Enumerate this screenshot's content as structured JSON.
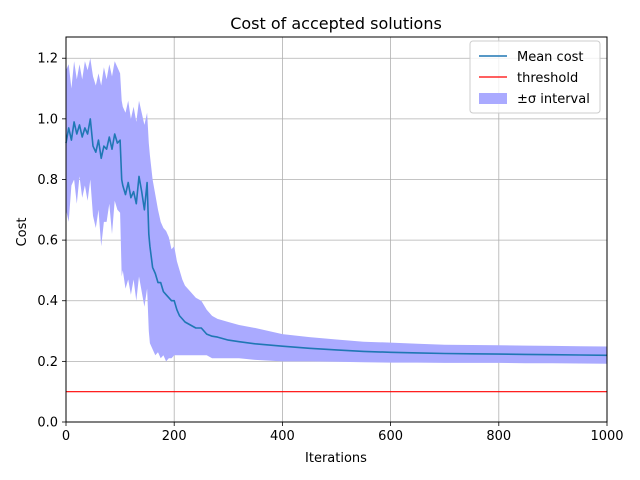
{
  "chart_data": {
    "type": "line",
    "title": "Cost of accepted solutions",
    "xlabel": "Iterations",
    "ylabel": "Cost",
    "xlim": [
      0,
      1000
    ],
    "ylim": [
      0,
      1.27
    ],
    "grid": true,
    "legend_position": "top-right",
    "x_ticks": [
      0,
      200,
      400,
      600,
      800,
      1000
    ],
    "x_tick_labels": [
      "0",
      "200",
      "400",
      "600",
      "800",
      "1000"
    ],
    "y_ticks": [
      0.0,
      0.2,
      0.4,
      0.6,
      0.8,
      1.0,
      1.2
    ],
    "y_tick_labels": [
      "0.0",
      "0.2",
      "0.4",
      "0.6",
      "0.8",
      "1.0",
      "1.2"
    ],
    "legend": [
      "Mean cost",
      "threshold",
      "±σ interval"
    ],
    "colors": {
      "mean": "#1f77b4",
      "threshold": "#ff0000",
      "band": "#aaaaff",
      "grid": "#b0b0b0"
    },
    "series": [
      {
        "name": "Mean cost",
        "x": [
          0,
          5,
          10,
          15,
          20,
          25,
          30,
          35,
          40,
          45,
          50,
          55,
          60,
          65,
          70,
          75,
          80,
          85,
          90,
          95,
          100,
          103,
          105,
          110,
          115,
          120,
          125,
          130,
          135,
          140,
          145,
          150,
          153,
          155,
          160,
          165,
          170,
          175,
          180,
          185,
          190,
          195,
          200,
          205,
          210,
          215,
          220,
          230,
          240,
          250,
          260,
          270,
          280,
          300,
          320,
          350,
          400,
          450,
          500,
          550,
          600,
          650,
          700,
          750,
          800,
          850,
          900,
          950,
          1000
        ],
        "y": [
          0.92,
          0.97,
          0.93,
          0.99,
          0.95,
          0.98,
          0.94,
          0.97,
          0.95,
          1.0,
          0.91,
          0.89,
          0.93,
          0.87,
          0.91,
          0.9,
          0.94,
          0.9,
          0.95,
          0.92,
          0.93,
          0.8,
          0.78,
          0.75,
          0.79,
          0.74,
          0.76,
          0.72,
          0.81,
          0.76,
          0.7,
          0.79,
          0.62,
          0.58,
          0.51,
          0.49,
          0.46,
          0.46,
          0.43,
          0.42,
          0.41,
          0.4,
          0.4,
          0.37,
          0.35,
          0.34,
          0.33,
          0.32,
          0.31,
          0.31,
          0.29,
          0.283,
          0.28,
          0.27,
          0.265,
          0.258,
          0.25,
          0.243,
          0.238,
          0.233,
          0.23,
          0.228,
          0.226,
          0.225,
          0.224,
          0.223,
          0.222,
          0.221,
          0.22
        ]
      },
      {
        "name": "threshold",
        "x": [
          0,
          1000
        ],
        "y": [
          0.1,
          0.1
        ]
      },
      {
        "name": "±σ interval",
        "x": [
          0,
          5,
          10,
          15,
          20,
          25,
          30,
          35,
          40,
          45,
          50,
          55,
          60,
          65,
          70,
          75,
          80,
          85,
          90,
          95,
          100,
          103,
          105,
          110,
          115,
          120,
          125,
          130,
          135,
          140,
          145,
          150,
          153,
          155,
          160,
          165,
          170,
          175,
          180,
          185,
          190,
          195,
          200,
          205,
          210,
          215,
          220,
          230,
          240,
          250,
          260,
          270,
          280,
          300,
          320,
          350,
          400,
          450,
          500,
          550,
          600,
          650,
          700,
          750,
          800,
          850,
          900,
          950,
          1000
        ],
        "lower": [
          0.7,
          0.66,
          0.78,
          0.8,
          0.72,
          0.81,
          0.74,
          0.78,
          0.73,
          0.8,
          0.68,
          0.64,
          0.7,
          0.58,
          0.66,
          0.66,
          0.72,
          0.62,
          0.73,
          0.7,
          0.69,
          0.48,
          0.5,
          0.44,
          0.47,
          0.42,
          0.47,
          0.4,
          0.48,
          0.43,
          0.38,
          0.44,
          0.3,
          0.26,
          0.24,
          0.22,
          0.23,
          0.21,
          0.22,
          0.2,
          0.21,
          0.21,
          0.22,
          0.22,
          0.22,
          0.22,
          0.22,
          0.22,
          0.22,
          0.22,
          0.22,
          0.21,
          0.21,
          0.21,
          0.21,
          0.205,
          0.2,
          0.2,
          0.199,
          0.197,
          0.196,
          0.196,
          0.195,
          0.195,
          0.195,
          0.194,
          0.194,
          0.193,
          0.192
        ],
        "upper": [
          1.16,
          1.18,
          1.1,
          1.19,
          1.13,
          1.18,
          1.13,
          1.19,
          1.16,
          1.2,
          1.14,
          1.11,
          1.15,
          1.11,
          1.17,
          1.13,
          1.18,
          1.14,
          1.19,
          1.17,
          1.15,
          1.06,
          1.04,
          1.02,
          1.06,
          1.0,
          1.04,
          0.99,
          1.06,
          1.02,
          0.98,
          1.02,
          0.92,
          0.88,
          0.8,
          0.75,
          0.7,
          0.66,
          0.64,
          0.63,
          0.61,
          0.57,
          0.58,
          0.53,
          0.5,
          0.47,
          0.45,
          0.43,
          0.41,
          0.4,
          0.37,
          0.35,
          0.34,
          0.33,
          0.32,
          0.31,
          0.29,
          0.28,
          0.272,
          0.265,
          0.262,
          0.258,
          0.255,
          0.254,
          0.253,
          0.252,
          0.251,
          0.25,
          0.249
        ]
      }
    ]
  }
}
